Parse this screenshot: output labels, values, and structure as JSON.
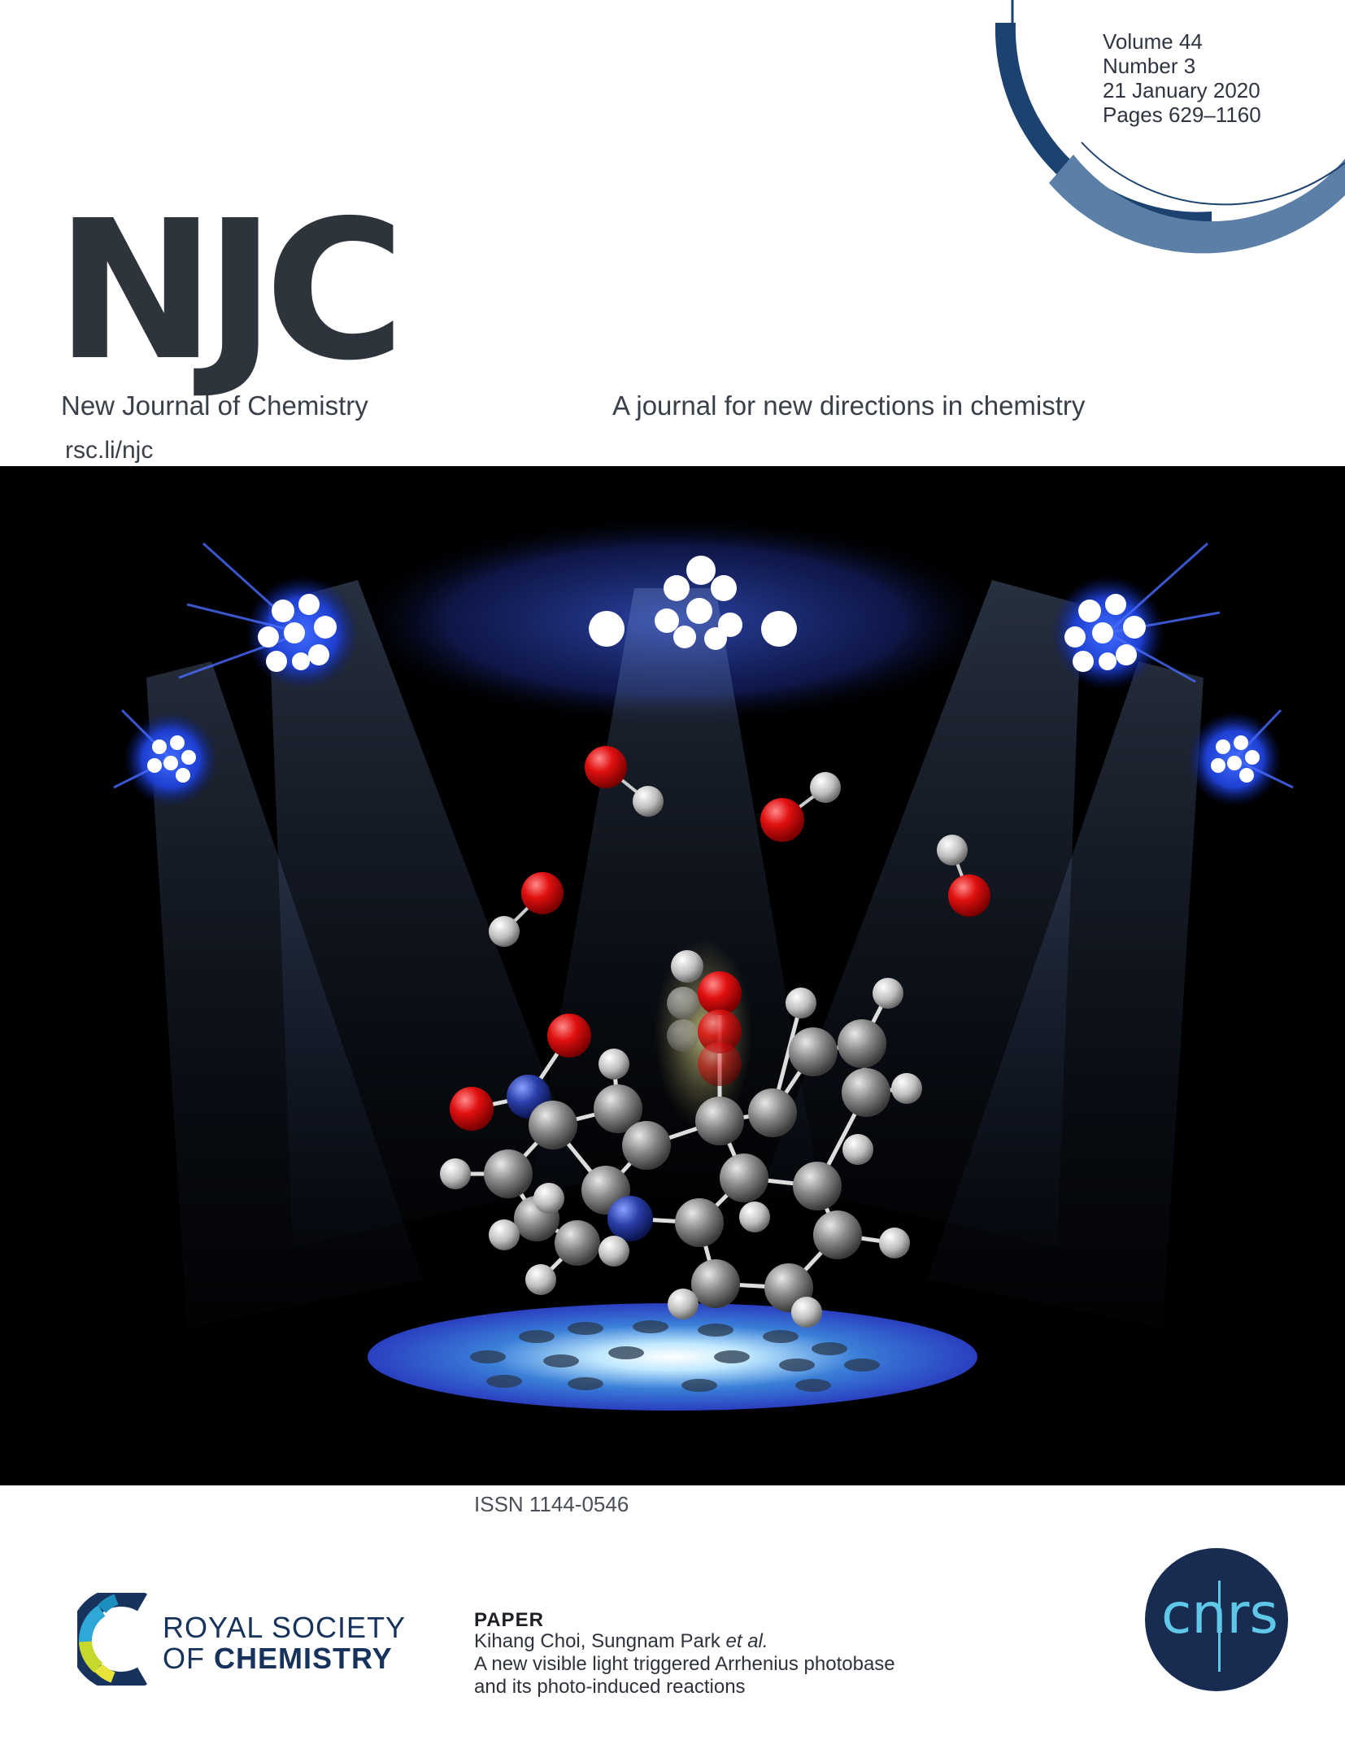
{
  "issue": {
    "volume": "Volume 44",
    "number": "Number 3",
    "date": "21 January 2020",
    "pages": "Pages 629–1160"
  },
  "journal": {
    "acronym": "NJC",
    "name": "New Journal of Chemistry",
    "tagline": "A journal for new directions in chemistry",
    "url": "rsc.li/njc"
  },
  "issn": "ISSN 1144-0546",
  "publisher": {
    "line1": "ROYAL SOCIETY",
    "line2_prefix": "OF ",
    "line2_bold": "CHEMISTRY"
  },
  "paper": {
    "label": "PAPER",
    "authors_main": "Kihang Choi, Sungnam Park ",
    "authors_etal": "et al.",
    "title_line1": "A new visible light triggered Arrhenius photobase",
    "title_line2": "and its photo-induced reactions"
  },
  "partner_logo": {
    "text": "cnrs"
  },
  "colors": {
    "arc_dark": "#1c4370",
    "arc_light": "#5b7fa6",
    "title_gray": "#2e343b",
    "publisher_blue": "#17335c",
    "cnrs_navy": "#182c51",
    "cnrs_cyan": "#5fc8e8"
  }
}
